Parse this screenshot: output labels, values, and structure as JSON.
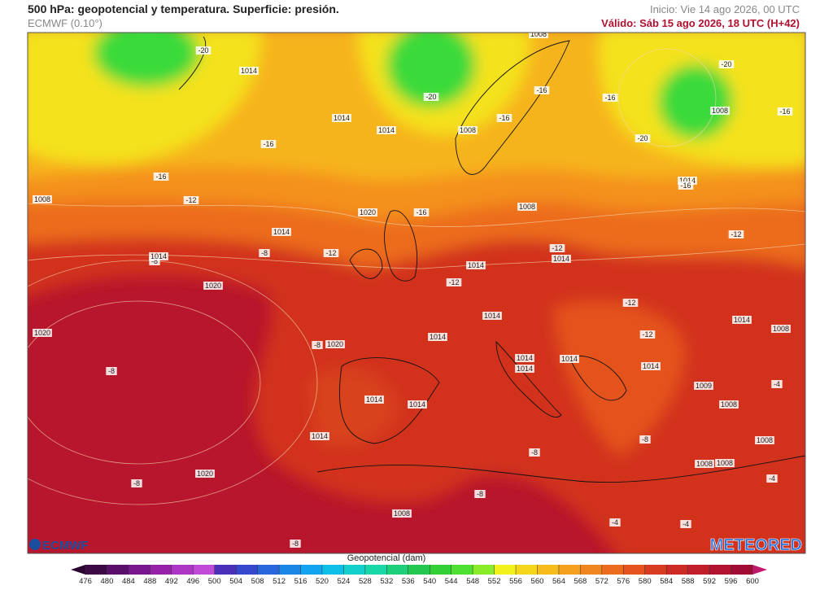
{
  "header": {
    "title": "500 hPa: geopotencial y temperatura. Superficie: presión.",
    "model": "ECMWF (0.10°)",
    "init": "Inicio: Vie 14 ago 2026, 00 UTC",
    "valid": "Válido: Sáb 15 ago 2026, 18 UTC (H+42)"
  },
  "map": {
    "labels": [
      "1014",
      "-20",
      "1014",
      "1014",
      "-20",
      "1008",
      "1008",
      "-16",
      "-16",
      "-16",
      "-20",
      "1008",
      "-16",
      "-20",
      "-16",
      "-16",
      "-12",
      "1008",
      "1020",
      "-16",
      "1008",
      "1014",
      "-16",
      "1014",
      "-8",
      "-12",
      "-8",
      "1014",
      "-12",
      "-12",
      "1014",
      "1014",
      "-12",
      "1020",
      "-12",
      "1014",
      "1014",
      "1008",
      "1020",
      "-8",
      "1020",
      "1014",
      "-12",
      "1014",
      "1014",
      "1014",
      "1014",
      "-8",
      "1009",
      "1014",
      "1014",
      "1008",
      "-4",
      "1014",
      "-8",
      "1008",
      "-8",
      "1008",
      "1008",
      "1020",
      "-8",
      "-4",
      "-8",
      "1008",
      "-4",
      "-4",
      "-8"
    ]
  },
  "logos": {
    "left": "ECMWF",
    "right": "METEORED"
  },
  "colorbar": {
    "title": "Geopotencial (dam)",
    "ticks": [
      476,
      480,
      484,
      488,
      492,
      496,
      500,
      504,
      508,
      512,
      516,
      520,
      524,
      528,
      532,
      536,
      540,
      544,
      548,
      552,
      556,
      560,
      564,
      568,
      572,
      576,
      580,
      584,
      588,
      592,
      596,
      600
    ],
    "colors": [
      "#3b0a45",
      "#5a0f6a",
      "#7a168c",
      "#9622a8",
      "#ad35c4",
      "#c04ad8",
      "#4a2fb8",
      "#3648cc",
      "#2766dc",
      "#1a86e6",
      "#12a4ee",
      "#10bfe8",
      "#14d0cc",
      "#18d8a8",
      "#1ccf78",
      "#24c850",
      "#32d034",
      "#4ee030",
      "#88ec28",
      "#f2f21a",
      "#f6d61a",
      "#f6bc1c",
      "#f4a01e",
      "#f08620",
      "#ec6c1e",
      "#e4521e",
      "#d83c20",
      "#cc2a24",
      "#c01e2a",
      "#b21430",
      "#a00c34"
    ],
    "under": "#2a0530",
    "over": "#c0186a"
  }
}
